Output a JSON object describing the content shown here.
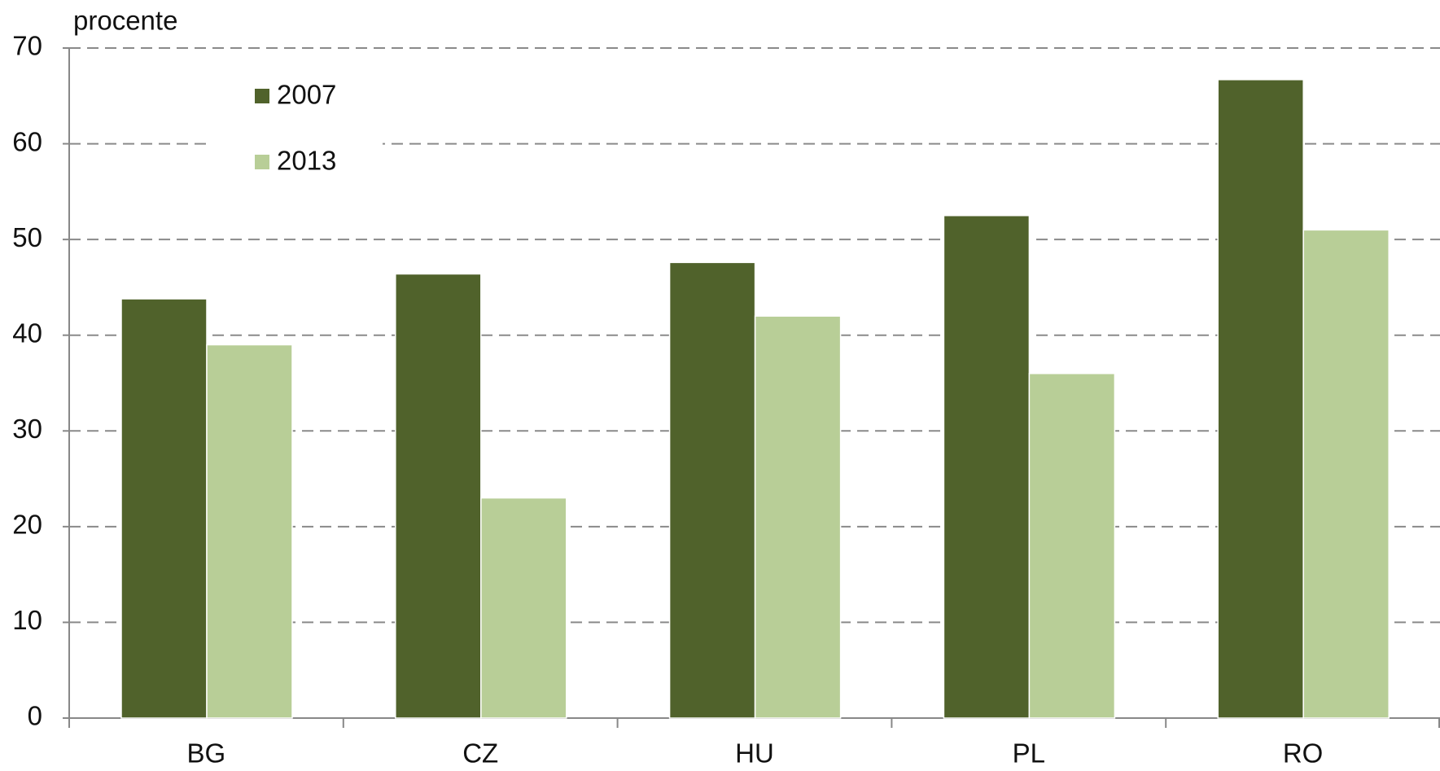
{
  "chart_data": {
    "type": "bar",
    "y_label": "procente",
    "categories": [
      "BG",
      "CZ",
      "HU",
      "PL",
      "RO"
    ],
    "series": [
      {
        "name": "2007",
        "color": "#50622b",
        "values": [
          43.8,
          46.4,
          47.6,
          52.5,
          66.7
        ]
      },
      {
        "name": "2013",
        "color": "#b8ce97",
        "values": [
          39,
          23,
          42,
          36,
          51
        ]
      }
    ],
    "ylim": [
      0,
      70
    ],
    "yticks": [
      0,
      10,
      20,
      30,
      40,
      50,
      60,
      70
    ],
    "grid": true,
    "legend": "top-left"
  }
}
